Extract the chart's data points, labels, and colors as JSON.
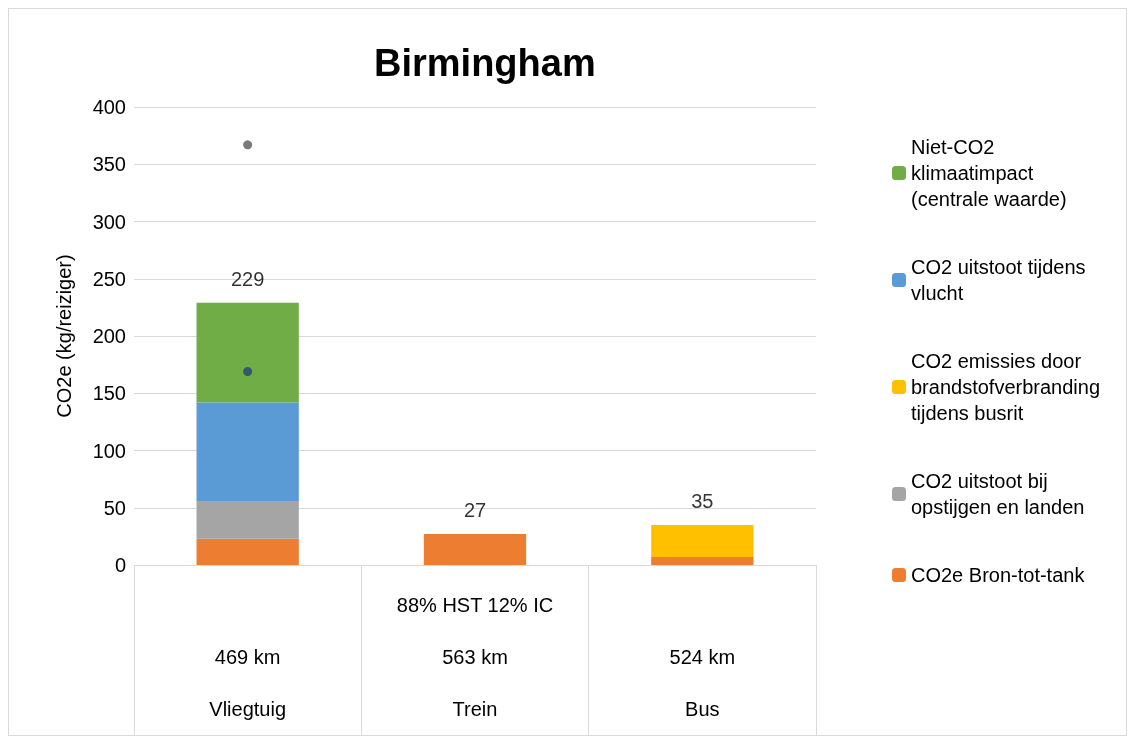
{
  "chart_data": {
    "type": "bar",
    "title": "Birmingham",
    "ylabel": "CO2e (kg/reiziger)",
    "categories": [
      "\n469 km\nVliegtuig",
      "88% HST 12% IC\n563 km\nTrein",
      "\n524 km\nBus"
    ],
    "stacked": true,
    "ylim": [
      0,
      400
    ],
    "yticks": [
      0,
      50,
      100,
      150,
      200,
      250,
      300,
      350,
      400
    ],
    "grid": "y",
    "legend": "right",
    "totals": [
      "229",
      "27",
      "35"
    ],
    "series": [
      {
        "name": "CO2e Bron-tot-tank",
        "color": "#ed7d31",
        "values": [
          23,
          27,
          7
        ]
      },
      {
        "name": "CO2 uitstoot bij opstijgen en landen",
        "color": "#a5a5a5",
        "values": [
          33,
          null,
          null
        ]
      },
      {
        "name": "CO2 emissies door brandstofverbranding tijdens busrit",
        "color": "#ffc000",
        "values": [
          null,
          null,
          28
        ]
      },
      {
        "name": "CO2 uitstoot tijdens vlucht",
        "color": "#5b9bd5",
        "values": [
          86,
          null,
          null
        ]
      },
      {
        "name": "Niet-CO2 klimaatimpact (centrale waarde)",
        "color": "#70ad47",
        "values": [
          87,
          null,
          null
        ]
      },
      {
        "type": "scatter",
        "color": "#595959",
        "x": [
          "\n469 km\nVliegtuig"
        ],
        "values": [
          367
        ]
      },
      {
        "type": "scatter",
        "color": "#264478",
        "x": [
          "\n469 km\nVliegtuig"
        ],
        "values": [
          169
        ]
      }
    ]
  }
}
